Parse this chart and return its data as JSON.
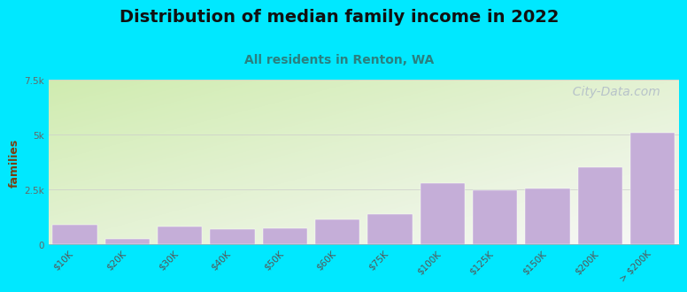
{
  "title": "Distribution of median family income in 2022",
  "subtitle": "All residents in Renton, WA",
  "ylabel": "families",
  "categories": [
    "$10K",
    "$20K",
    "$30K",
    "$40K",
    "$50K",
    "$60K",
    "$75K",
    "$100K",
    "$125K",
    "$150K",
    "$200K",
    "> $200K"
  ],
  "values": [
    900,
    270,
    800,
    700,
    750,
    1150,
    1400,
    2800,
    2450,
    2550,
    3500,
    5100
  ],
  "bar_color": "#c5aed8",
  "ylim": [
    0,
    7500
  ],
  "background_outer": "#00e8ff",
  "background_inner_top_left": "#d8efc0",
  "background_inner_bottom_right": "#f8f8f8",
  "title_fontsize": 14,
  "title_color": "#111111",
  "subtitle_fontsize": 10,
  "subtitle_color": "#2a8080",
  "ylabel_color": "#7a3f10",
  "ylabel_fontsize": 9,
  "watermark_text": "  City-Data.com",
  "watermark_color": "#b0bbc8",
  "watermark_fontsize": 10,
  "tick_label_color": "#555555",
  "ytick_label_color": "#666666",
  "tick_label_fontsize": 7.5,
  "grid_color": "#cccccc",
  "grid_linewidth": 0.5
}
